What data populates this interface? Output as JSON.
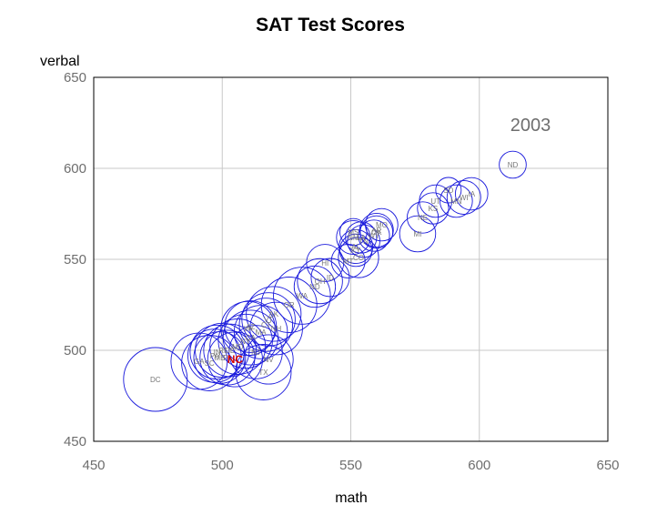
{
  "chart_data": {
    "type": "scatter",
    "title": "SAT Test Scores",
    "xlabel": "math",
    "ylabel": "verbal",
    "annotation": "2003",
    "xlim": [
      450,
      650
    ],
    "ylim": [
      450,
      650
    ],
    "xticks": [
      450,
      500,
      550,
      600,
      650
    ],
    "yticks": [
      450,
      500,
      550,
      600,
      650
    ],
    "grid": true,
    "colors": {
      "bubble": "#1a1adc",
      "label": "#777777",
      "highlight": "#d40000",
      "grid": "#c8c8c8"
    },
    "points": [
      {
        "label": "DC",
        "x": 474,
        "y": 484,
        "size": 0.5
      },
      {
        "label": "ND",
        "x": 613,
        "y": 602,
        "size": 0.09
      },
      {
        "label": "SD",
        "x": 588,
        "y": 588,
        "size": 0.08
      },
      {
        "label": "IA",
        "x": 597,
        "y": 586,
        "size": 0.13
      },
      {
        "label": "WI",
        "x": 594,
        "y": 584,
        "size": 0.14
      },
      {
        "label": "MN",
        "x": 591,
        "y": 582,
        "size": 0.13
      },
      {
        "label": "UT",
        "x": 583,
        "y": 582,
        "size": 0.13
      },
      {
        "label": "KS",
        "x": 582,
        "y": 578,
        "size": 0.12
      },
      {
        "label": "NE",
        "x": 578,
        "y": 573,
        "size": 0.12
      },
      {
        "label": "MI",
        "x": 576,
        "y": 564,
        "size": 0.16
      },
      {
        "label": "MO",
        "x": 562,
        "y": 569,
        "size": 0.13
      },
      {
        "label": "AR",
        "x": 560,
        "y": 566,
        "size": 0.14
      },
      {
        "label": "OK",
        "x": 560,
        "y": 565,
        "size": 0.13
      },
      {
        "label": "WY",
        "x": 559,
        "y": 563,
        "size": 0.12
      },
      {
        "label": "MS",
        "x": 551,
        "y": 565,
        "size": 0.09
      },
      {
        "label": "NM",
        "x": 551,
        "y": 562,
        "size": 0.14
      },
      {
        "label": "LA",
        "x": 554,
        "y": 562,
        "size": 0.12
      },
      {
        "label": "TN",
        "x": 555,
        "y": 560,
        "size": 0.13
      },
      {
        "label": "AL",
        "x": 552,
        "y": 557,
        "size": 0.14
      },
      {
        "label": "KY",
        "x": 552,
        "y": 555,
        "size": 0.13
      },
      {
        "label": "CO",
        "x": 553,
        "y": 551,
        "size": 0.2
      },
      {
        "label": "MT",
        "x": 549,
        "y": 549,
        "size": 0.14
      },
      {
        "label": "ID",
        "x": 542,
        "y": 540,
        "size": 0.18
      },
      {
        "label": "HI",
        "x": 540,
        "y": 548,
        "size": 0.17
      },
      {
        "label": "OH",
        "x": 538,
        "y": 538,
        "size": 0.25
      },
      {
        "label": "ND",
        "x": 536,
        "y": 535,
        "size": 0.21
      },
      {
        "label": "WA",
        "x": 531,
        "y": 530,
        "size": 0.4
      },
      {
        "label": "OR",
        "x": 526,
        "y": 525,
        "size": 0.38
      },
      {
        "label": "AK",
        "x": 520,
        "y": 520,
        "size": 0.37
      },
      {
        "label": "VT",
        "x": 518,
        "y": 517,
        "size": 0.35
      },
      {
        "label": "CT",
        "x": 517,
        "y": 514,
        "size": 0.35
      },
      {
        "label": "NH",
        "x": 521,
        "y": 512,
        "size": 0.34
      },
      {
        "label": "MA",
        "x": 515,
        "y": 510,
        "size": 0.35
      },
      {
        "label": "AZ",
        "x": 511,
        "y": 513,
        "size": 0.33
      },
      {
        "label": "VA",
        "x": 510,
        "y": 512,
        "size": 0.36
      },
      {
        "label": "CA",
        "x": 511,
        "y": 507,
        "size": 0.37
      },
      {
        "label": "NY",
        "x": 509,
        "y": 505,
        "size": 0.36
      },
      {
        "label": "NJ",
        "x": 513,
        "y": 499,
        "size": 0.35
      },
      {
        "label": "MD",
        "x": 506,
        "y": 502,
        "size": 0.38
      },
      {
        "label": "DE",
        "x": 503,
        "y": 500,
        "size": 0.34
      },
      {
        "label": "RI",
        "x": 500,
        "y": 500,
        "size": 0.36
      },
      {
        "label": "FL",
        "x": 502,
        "y": 496,
        "size": 0.37
      },
      {
        "label": "PA",
        "x": 497,
        "y": 497,
        "size": 0.35
      },
      {
        "label": "IN",
        "x": 498,
        "y": 499,
        "size": 0.36
      },
      {
        "label": "ME",
        "x": 499,
        "y": 496,
        "size": 0.33
      },
      {
        "label": "GA",
        "x": 491,
        "y": 494,
        "size": 0.39
      },
      {
        "label": "SC",
        "x": 495,
        "y": 493,
        "size": 0.38
      },
      {
        "label": "TX",
        "x": 516,
        "y": 488,
        "size": 0.38
      },
      {
        "label": "NV",
        "x": 518,
        "y": 495,
        "size": 0.3
      },
      {
        "label": "NC",
        "x": 505,
        "y": 495,
        "size": 0.37,
        "highlight": true
      }
    ]
  }
}
